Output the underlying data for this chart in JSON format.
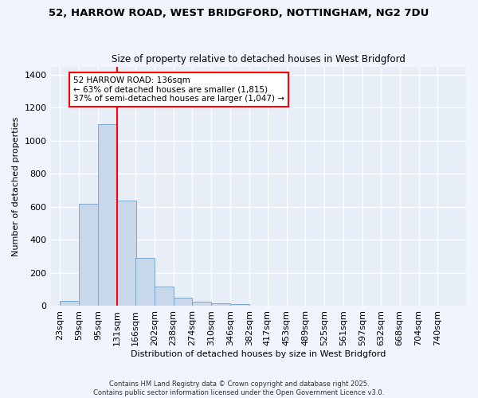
{
  "title1": "52, HARROW ROAD, WEST BRIDGFORD, NOTTINGHAM, NG2 7DU",
  "title2": "Size of property relative to detached houses in West Bridgford",
  "xlabel": "Distribution of detached houses by size in West Bridgford",
  "ylabel": "Number of detached properties",
  "bin_labels": [
    "23sqm",
    "59sqm",
    "95sqm",
    "131sqm",
    "166sqm",
    "202sqm",
    "238sqm",
    "274sqm",
    "310sqm",
    "346sqm",
    "382sqm",
    "417sqm",
    "453sqm",
    "489sqm",
    "525sqm",
    "561sqm",
    "597sqm",
    "632sqm",
    "668sqm",
    "704sqm",
    "740sqm"
  ],
  "bar_heights": [
    30,
    620,
    1100,
    640,
    290,
    120,
    50,
    25,
    15,
    10,
    0,
    0,
    0,
    0,
    0,
    0,
    0,
    0,
    0,
    0,
    0
  ],
  "bar_color": "#c8d8ea",
  "bar_edge_color": "#7aa8cc",
  "background_color": "#f0f4fc",
  "plot_bg_color": "#e8eef8",
  "grid_color": "#ffffff",
  "vline_color": "red",
  "annotation_title": "52 HARROW ROAD: 136sqm",
  "annotation_line2": "← 63% of detached houses are smaller (1,815)",
  "annotation_line3": "37% of semi-detached houses are larger (1,047) →",
  "annotation_box_color": "white",
  "annotation_box_edge": "red",
  "footer1": "Contains HM Land Registry data © Crown copyright and database right 2025.",
  "footer2": "Contains public sector information licensed under the Open Government Licence v3.0.",
  "ylim": [
    0,
    1450
  ],
  "yticks": [
    0,
    200,
    400,
    600,
    800,
    1000,
    1200,
    1400
  ]
}
